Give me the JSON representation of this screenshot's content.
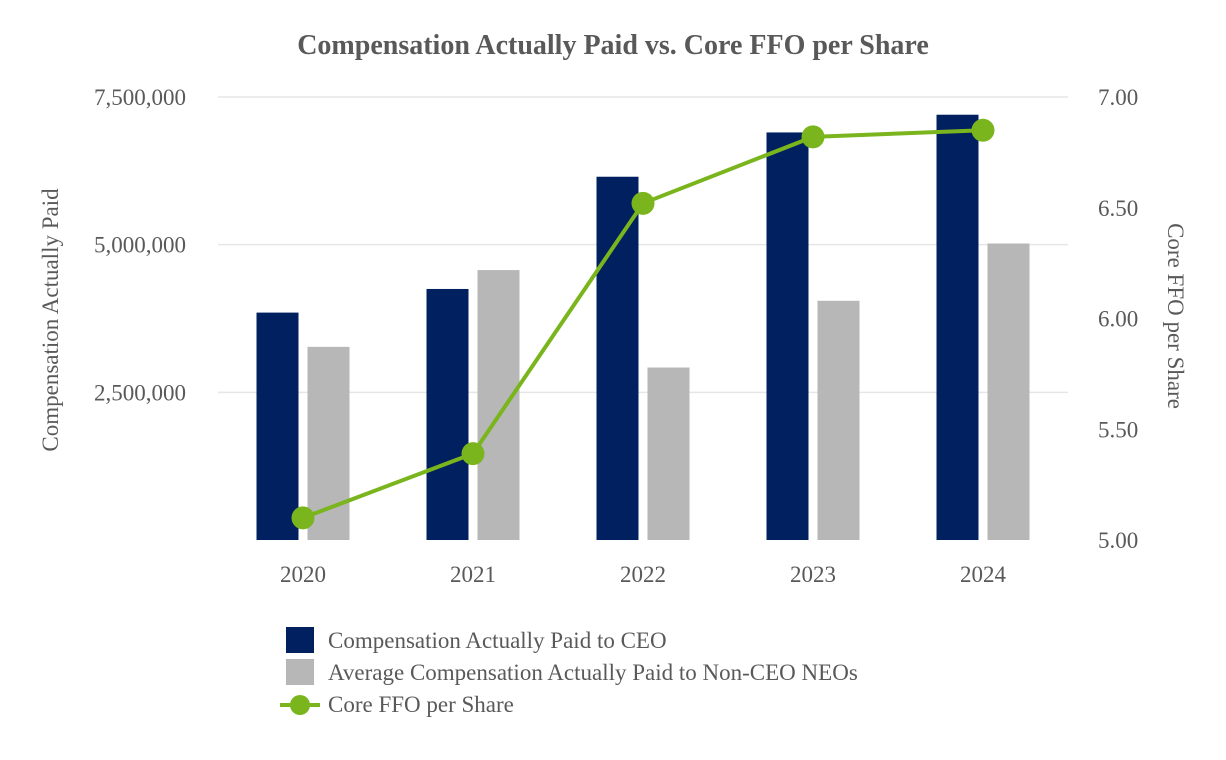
{
  "chart_data": {
    "type": "bar",
    "title": "Compensation Actually Paid vs. Core FFO per Share",
    "categories": [
      "2020",
      "2021",
      "2022",
      "2023",
      "2024"
    ],
    "ylabel": "Compensation Actually Paid",
    "y2label": "Core FFO per Share",
    "ylim": [
      0,
      7500000
    ],
    "y2lim": [
      5.0,
      7.0
    ],
    "yticks": [
      "2,500,000",
      "5,000,000",
      "7,500,000"
    ],
    "y2ticks": [
      "5.00",
      "5.50",
      "6.00",
      "6.50",
      "7.00"
    ],
    "grid": true,
    "legend_position": "bottom",
    "series": [
      {
        "name": "Compensation Actually Paid to CEO",
        "type": "bar",
        "axis": "left",
        "color": "#002060",
        "values": [
          3850000,
          4250000,
          6150000,
          6900000,
          7200000
        ]
      },
      {
        "name": "Average Compensation Actually Paid to Non-CEO NEOs",
        "type": "bar",
        "axis": "left",
        "color": "#b7b7b7",
        "values": [
          3270000,
          4570000,
          2920000,
          4050000,
          5020000
        ]
      },
      {
        "name": "Core FFO per Share",
        "type": "line",
        "axis": "right",
        "color": "#7ab51d",
        "values": [
          5.1,
          5.39,
          6.52,
          6.82,
          6.85
        ]
      }
    ]
  }
}
